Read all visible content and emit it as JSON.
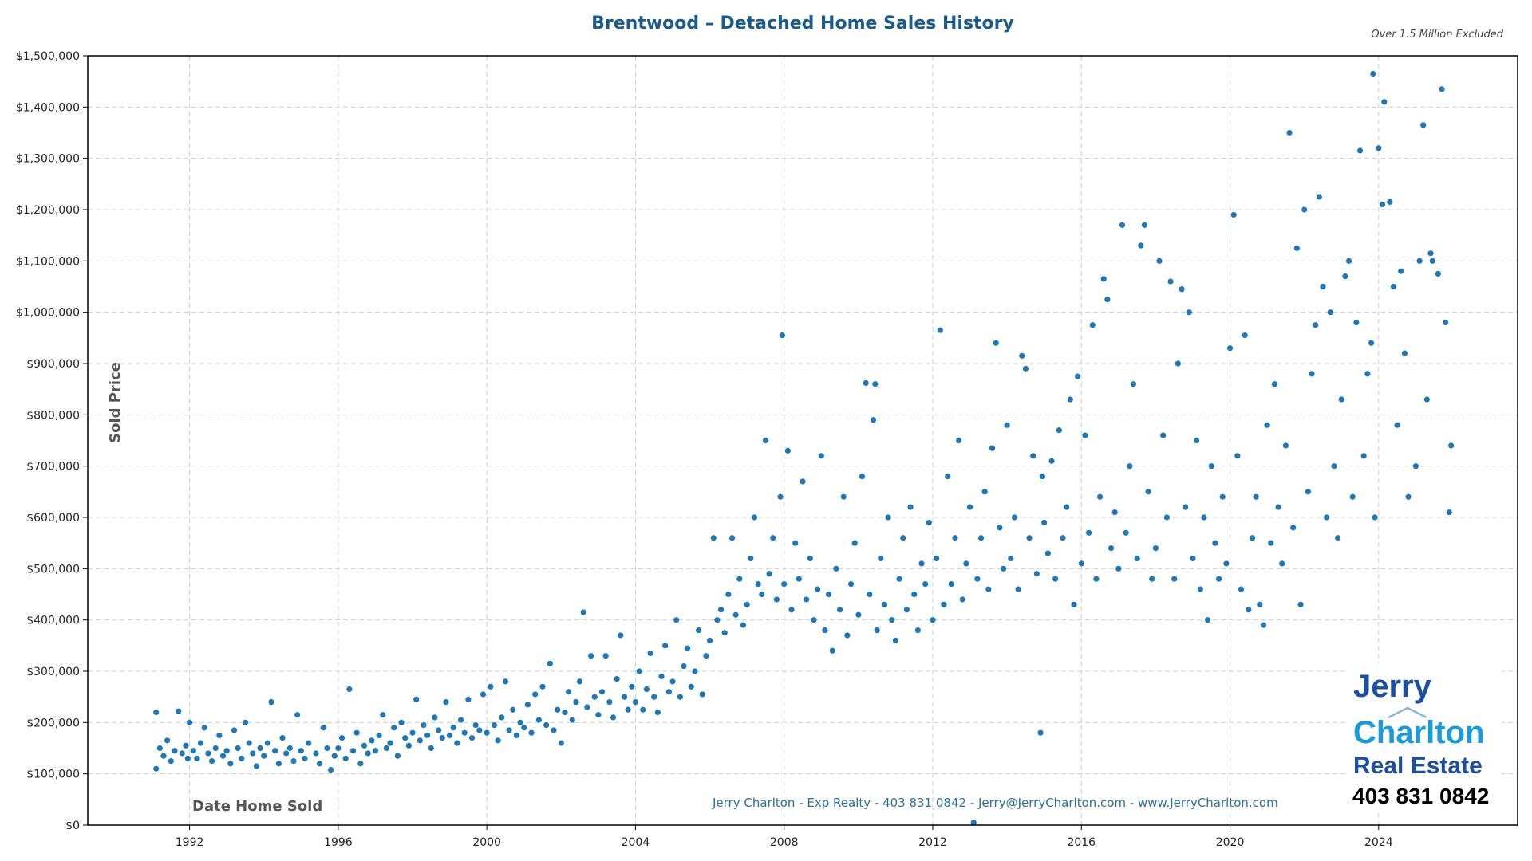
{
  "chart_data": {
    "type": "scatter",
    "title": "Brentwood – Detached Home Sales History",
    "subtitle": "Over 1.5 Million Excluded",
    "xlabel": "Date Home Sold",
    "ylabel": "Sold Price",
    "xlim": [
      1989.26,
      2027.74
    ],
    "ylim": [
      0,
      1500000
    ],
    "xticks": [
      1992,
      1996,
      2000,
      2004,
      2008,
      2012,
      2016,
      2020,
      2024
    ],
    "xtick_labels": [
      "1992",
      "1996",
      "2000",
      "2004",
      "2008",
      "2012",
      "2016",
      "2020",
      "2024"
    ],
    "yticks": [
      0,
      100000,
      200000,
      300000,
      400000,
      500000,
      600000,
      700000,
      800000,
      900000,
      1000000,
      1100000,
      1200000,
      1300000,
      1400000,
      1500000
    ],
    "ytick_labels": [
      "$0",
      "$100,000",
      "$200,000",
      "$300,000",
      "$400,000",
      "$500,000",
      "$600,000",
      "$700,000",
      "$800,000",
      "$900,000",
      "$1,000,000",
      "$1,100,000",
      "$1,200,000",
      "$1,300,000",
      "$1,400,000",
      "$1,500,000"
    ],
    "grid": true,
    "point_color": "#1f77b4",
    "points": [
      [
        1991.1,
        110000
      ],
      [
        1991.1,
        220000
      ],
      [
        1991.2,
        150000
      ],
      [
        1991.3,
        135000
      ],
      [
        1991.4,
        165000
      ],
      [
        1991.5,
        125000
      ],
      [
        1991.6,
        145000
      ],
      [
        1991.7,
        222000
      ],
      [
        1991.8,
        140000
      ],
      [
        1991.9,
        155000
      ],
      [
        1991.95,
        130000
      ],
      [
        1992.0,
        200000
      ],
      [
        1992.1,
        145000
      ],
      [
        1992.2,
        130000
      ],
      [
        1992.3,
        160000
      ],
      [
        1992.4,
        190000
      ],
      [
        1992.5,
        140000
      ],
      [
        1992.6,
        125000
      ],
      [
        1992.7,
        150000
      ],
      [
        1992.8,
        175000
      ],
      [
        1992.9,
        135000
      ],
      [
        1993.0,
        145000
      ],
      [
        1993.1,
        120000
      ],
      [
        1993.2,
        185000
      ],
      [
        1993.3,
        150000
      ],
      [
        1993.4,
        130000
      ],
      [
        1993.5,
        200000
      ],
      [
        1993.6,
        160000
      ],
      [
        1993.7,
        140000
      ],
      [
        1993.8,
        115000
      ],
      [
        1993.9,
        150000
      ],
      [
        1994.0,
        135000
      ],
      [
        1994.1,
        160000
      ],
      [
        1994.2,
        240000
      ],
      [
        1994.3,
        145000
      ],
      [
        1994.4,
        120000
      ],
      [
        1994.5,
        170000
      ],
      [
        1994.6,
        140000
      ],
      [
        1994.7,
        150000
      ],
      [
        1994.8,
        125000
      ],
      [
        1994.9,
        215000
      ],
      [
        1995.0,
        145000
      ],
      [
        1995.1,
        130000
      ],
      [
        1995.2,
        160000
      ],
      [
        1995.4,
        140000
      ],
      [
        1995.5,
        120000
      ],
      [
        1995.6,
        190000
      ],
      [
        1995.7,
        150000
      ],
      [
        1995.8,
        108000
      ],
      [
        1995.9,
        135000
      ],
      [
        1996.0,
        150000
      ],
      [
        1996.1,
        170000
      ],
      [
        1996.2,
        130000
      ],
      [
        1996.3,
        265000
      ],
      [
        1996.4,
        145000
      ],
      [
        1996.5,
        180000
      ],
      [
        1996.6,
        120000
      ],
      [
        1996.7,
        155000
      ],
      [
        1996.8,
        140000
      ],
      [
        1996.9,
        165000
      ],
      [
        1997.0,
        145000
      ],
      [
        1997.1,
        175000
      ],
      [
        1997.2,
        215000
      ],
      [
        1997.3,
        150000
      ],
      [
        1997.4,
        160000
      ],
      [
        1997.5,
        190000
      ],
      [
        1997.6,
        135000
      ],
      [
        1997.7,
        200000
      ],
      [
        1997.8,
        170000
      ],
      [
        1997.9,
        155000
      ],
      [
        1998.0,
        180000
      ],
      [
        1998.1,
        245000
      ],
      [
        1998.2,
        165000
      ],
      [
        1998.3,
        195000
      ],
      [
        1998.4,
        175000
      ],
      [
        1998.5,
        150000
      ],
      [
        1998.6,
        210000
      ],
      [
        1998.7,
        185000
      ],
      [
        1998.8,
        170000
      ],
      [
        1998.9,
        240000
      ],
      [
        1999.0,
        175000
      ],
      [
        1999.1,
        190000
      ],
      [
        1999.2,
        160000
      ],
      [
        1999.3,
        205000
      ],
      [
        1999.4,
        180000
      ],
      [
        1999.5,
        245000
      ],
      [
        1999.6,
        170000
      ],
      [
        1999.7,
        195000
      ],
      [
        1999.8,
        185000
      ],
      [
        1999.9,
        255000
      ],
      [
        2000.0,
        180000
      ],
      [
        2000.1,
        270000
      ],
      [
        2000.2,
        195000
      ],
      [
        2000.3,
        165000
      ],
      [
        2000.4,
        210000
      ],
      [
        2000.5,
        280000
      ],
      [
        2000.6,
        185000
      ],
      [
        2000.7,
        225000
      ],
      [
        2000.8,
        175000
      ],
      [
        2000.9,
        200000
      ],
      [
        2001.0,
        190000
      ],
      [
        2001.1,
        235000
      ],
      [
        2001.2,
        180000
      ],
      [
        2001.3,
        255000
      ],
      [
        2001.4,
        205000
      ],
      [
        2001.5,
        270000
      ],
      [
        2001.6,
        195000
      ],
      [
        2001.7,
        315000
      ],
      [
        2001.8,
        185000
      ],
      [
        2001.9,
        225000
      ],
      [
        2002.0,
        160000
      ],
      [
        2002.1,
        220000
      ],
      [
        2002.2,
        260000
      ],
      [
        2002.3,
        205000
      ],
      [
        2002.4,
        240000
      ],
      [
        2002.5,
        280000
      ],
      [
        2002.6,
        415000
      ],
      [
        2002.7,
        230000
      ],
      [
        2002.8,
        330000
      ],
      [
        2002.9,
        250000
      ],
      [
        2003.0,
        215000
      ],
      [
        2003.1,
        260000
      ],
      [
        2003.2,
        330000
      ],
      [
        2003.3,
        240000
      ],
      [
        2003.4,
        210000
      ],
      [
        2003.5,
        285000
      ],
      [
        2003.6,
        370000
      ],
      [
        2003.7,
        250000
      ],
      [
        2003.8,
        225000
      ],
      [
        2003.9,
        270000
      ],
      [
        2004.0,
        240000
      ],
      [
        2004.1,
        300000
      ],
      [
        2004.2,
        225000
      ],
      [
        2004.3,
        265000
      ],
      [
        2004.4,
        335000
      ],
      [
        2004.5,
        250000
      ],
      [
        2004.6,
        220000
      ],
      [
        2004.7,
        290000
      ],
      [
        2004.8,
        350000
      ],
      [
        2004.9,
        260000
      ],
      [
        2005.0,
        280000
      ],
      [
        2005.1,
        400000
      ],
      [
        2005.2,
        250000
      ],
      [
        2005.3,
        310000
      ],
      [
        2005.4,
        345000
      ],
      [
        2005.5,
        270000
      ],
      [
        2005.6,
        300000
      ],
      [
        2005.7,
        380000
      ],
      [
        2005.8,
        255000
      ],
      [
        2005.9,
        330000
      ],
      [
        2006.0,
        360000
      ],
      [
        2006.1,
        560000
      ],
      [
        2006.2,
        400000
      ],
      [
        2006.3,
        420000
      ],
      [
        2006.4,
        375000
      ],
      [
        2006.5,
        450000
      ],
      [
        2006.6,
        560000
      ],
      [
        2006.7,
        410000
      ],
      [
        2006.8,
        480000
      ],
      [
        2006.9,
        390000
      ],
      [
        2007.0,
        430000
      ],
      [
        2007.1,
        520000
      ],
      [
        2007.2,
        600000
      ],
      [
        2007.3,
        470000
      ],
      [
        2007.4,
        450000
      ],
      [
        2007.5,
        750000
      ],
      [
        2007.6,
        490000
      ],
      [
        2007.7,
        560000
      ],
      [
        2007.8,
        440000
      ],
      [
        2007.9,
        640000
      ],
      [
        2007.95,
        955000
      ],
      [
        2008.0,
        470000
      ],
      [
        2008.1,
        730000
      ],
      [
        2008.2,
        420000
      ],
      [
        2008.3,
        550000
      ],
      [
        2008.4,
        480000
      ],
      [
        2008.5,
        670000
      ],
      [
        2008.6,
        440000
      ],
      [
        2008.7,
        520000
      ],
      [
        2008.8,
        400000
      ],
      [
        2008.9,
        460000
      ],
      [
        2009.0,
        720000
      ],
      [
        2009.1,
        380000
      ],
      [
        2009.2,
        450000
      ],
      [
        2009.3,
        340000
      ],
      [
        2009.4,
        500000
      ],
      [
        2009.5,
        420000
      ],
      [
        2009.6,
        640000
      ],
      [
        2009.7,
        370000
      ],
      [
        2009.8,
        470000
      ],
      [
        2009.9,
        550000
      ],
      [
        2010.0,
        410000
      ],
      [
        2010.1,
        680000
      ],
      [
        2010.2,
        862000
      ],
      [
        2010.3,
        450000
      ],
      [
        2010.4,
        790000
      ],
      [
        2010.45,
        860000
      ],
      [
        2010.5,
        380000
      ],
      [
        2010.6,
        520000
      ],
      [
        2010.7,
        430000
      ],
      [
        2010.8,
        600000
      ],
      [
        2010.9,
        400000
      ],
      [
        2011.0,
        360000
      ],
      [
        2011.1,
        480000
      ],
      [
        2011.2,
        560000
      ],
      [
        2011.3,
        420000
      ],
      [
        2011.4,
        620000
      ],
      [
        2011.5,
        450000
      ],
      [
        2011.6,
        380000
      ],
      [
        2011.7,
        510000
      ],
      [
        2011.8,
        470000
      ],
      [
        2011.9,
        590000
      ],
      [
        2012.0,
        400000
      ],
      [
        2012.1,
        520000
      ],
      [
        2012.2,
        965000
      ],
      [
        2012.3,
        430000
      ],
      [
        2012.4,
        680000
      ],
      [
        2012.5,
        470000
      ],
      [
        2012.6,
        560000
      ],
      [
        2012.7,
        750000
      ],
      [
        2012.8,
        440000
      ],
      [
        2012.9,
        510000
      ],
      [
        2013.0,
        620000
      ],
      [
        2013.1,
        5000
      ],
      [
        2013.2,
        480000
      ],
      [
        2013.3,
        560000
      ],
      [
        2013.4,
        650000
      ],
      [
        2013.5,
        460000
      ],
      [
        2013.6,
        735000
      ],
      [
        2013.7,
        940000
      ],
      [
        2013.8,
        580000
      ],
      [
        2013.9,
        500000
      ],
      [
        2014.0,
        780000
      ],
      [
        2014.1,
        520000
      ],
      [
        2014.2,
        600000
      ],
      [
        2014.3,
        460000
      ],
      [
        2014.4,
        915000
      ],
      [
        2014.5,
        890000
      ],
      [
        2014.6,
        560000
      ],
      [
        2014.7,
        720000
      ],
      [
        2014.8,
        490000
      ],
      [
        2014.9,
        180000
      ],
      [
        2014.95,
        680000
      ],
      [
        2015.0,
        590000
      ],
      [
        2015.1,
        530000
      ],
      [
        2015.2,
        710000
      ],
      [
        2015.3,
        480000
      ],
      [
        2015.4,
        770000
      ],
      [
        2015.5,
        560000
      ],
      [
        2015.6,
        620000
      ],
      [
        2015.7,
        830000
      ],
      [
        2015.8,
        430000
      ],
      [
        2015.9,
        875000
      ],
      [
        2016.0,
        510000
      ],
      [
        2016.1,
        760000
      ],
      [
        2016.2,
        570000
      ],
      [
        2016.3,
        975000
      ],
      [
        2016.4,
        480000
      ],
      [
        2016.5,
        640000
      ],
      [
        2016.6,
        1065000
      ],
      [
        2016.7,
        1025000
      ],
      [
        2016.8,
        540000
      ],
      [
        2016.9,
        610000
      ],
      [
        2017.0,
        500000
      ],
      [
        2017.1,
        1170000
      ],
      [
        2017.2,
        570000
      ],
      [
        2017.3,
        700000
      ],
      [
        2017.4,
        860000
      ],
      [
        2017.5,
        520000
      ],
      [
        2017.6,
        1130000
      ],
      [
        2017.7,
        1170000
      ],
      [
        2017.8,
        650000
      ],
      [
        2017.9,
        480000
      ],
      [
        2018.0,
        540000
      ],
      [
        2018.1,
        1100000
      ],
      [
        2018.2,
        760000
      ],
      [
        2018.3,
        600000
      ],
      [
        2018.4,
        1060000
      ],
      [
        2018.5,
        480000
      ],
      [
        2018.6,
        900000
      ],
      [
        2018.7,
        1045000
      ],
      [
        2018.8,
        620000
      ],
      [
        2018.9,
        1000000
      ],
      [
        2019.0,
        520000
      ],
      [
        2019.1,
        750000
      ],
      [
        2019.2,
        460000
      ],
      [
        2019.3,
        600000
      ],
      [
        2019.4,
        400000
      ],
      [
        2019.5,
        700000
      ],
      [
        2019.6,
        550000
      ],
      [
        2019.7,
        480000
      ],
      [
        2019.8,
        640000
      ],
      [
        2019.9,
        510000
      ],
      [
        2020.0,
        930000
      ],
      [
        2020.1,
        1190000
      ],
      [
        2020.2,
        720000
      ],
      [
        2020.3,
        460000
      ],
      [
        2020.4,
        955000
      ],
      [
        2020.5,
        420000
      ],
      [
        2020.6,
        560000
      ],
      [
        2020.7,
        640000
      ],
      [
        2020.8,
        430000
      ],
      [
        2020.9,
        390000
      ],
      [
        2021.0,
        780000
      ],
      [
        2021.1,
        550000
      ],
      [
        2021.2,
        860000
      ],
      [
        2021.3,
        620000
      ],
      [
        2021.4,
        510000
      ],
      [
        2021.5,
        740000
      ],
      [
        2021.6,
        1350000
      ],
      [
        2021.7,
        580000
      ],
      [
        2021.8,
        1125000
      ],
      [
        2021.9,
        430000
      ],
      [
        2022.0,
        1200000
      ],
      [
        2022.1,
        650000
      ],
      [
        2022.2,
        880000
      ],
      [
        2022.3,
        975000
      ],
      [
        2022.4,
        1225000
      ],
      [
        2022.5,
        1050000
      ],
      [
        2022.6,
        600000
      ],
      [
        2022.7,
        1000000
      ],
      [
        2022.8,
        700000
      ],
      [
        2022.9,
        560000
      ],
      [
        2023.0,
        830000
      ],
      [
        2023.1,
        1070000
      ],
      [
        2023.2,
        1100000
      ],
      [
        2023.3,
        640000
      ],
      [
        2023.4,
        980000
      ],
      [
        2023.5,
        1315000
      ],
      [
        2023.6,
        720000
      ],
      [
        2023.7,
        880000
      ],
      [
        2023.8,
        940000
      ],
      [
        2023.85,
        1465000
      ],
      [
        2023.9,
        600000
      ],
      [
        2024.0,
        1320000
      ],
      [
        2024.1,
        1210000
      ],
      [
        2024.15,
        1410000
      ],
      [
        2024.3,
        1215000
      ],
      [
        2024.4,
        1050000
      ],
      [
        2024.5,
        780000
      ],
      [
        2024.6,
        1080000
      ],
      [
        2024.7,
        920000
      ],
      [
        2024.8,
        640000
      ],
      [
        2025.0,
        700000
      ],
      [
        2025.1,
        1100000
      ],
      [
        2025.2,
        1365000
      ],
      [
        2025.3,
        830000
      ],
      [
        2025.4,
        1115000
      ],
      [
        2025.45,
        1100000
      ],
      [
        2025.6,
        1075000
      ],
      [
        2025.7,
        1435000
      ],
      [
        2025.8,
        980000
      ],
      [
        2025.9,
        610000
      ],
      [
        2025.95,
        740000
      ]
    ]
  },
  "footer": {
    "contact": "Jerry Charlton - Exp Realty - 403 831 0842 - Jerry@JerryCharlton.com - www.JerryCharlton.com"
  },
  "logo": {
    "line1": "Jerry",
    "line2": "Charlton",
    "line3": "Real Estate",
    "phone": "403 831 0842",
    "colors": {
      "dark": "#1c4fa0",
      "light": "#1a9ad9"
    }
  }
}
